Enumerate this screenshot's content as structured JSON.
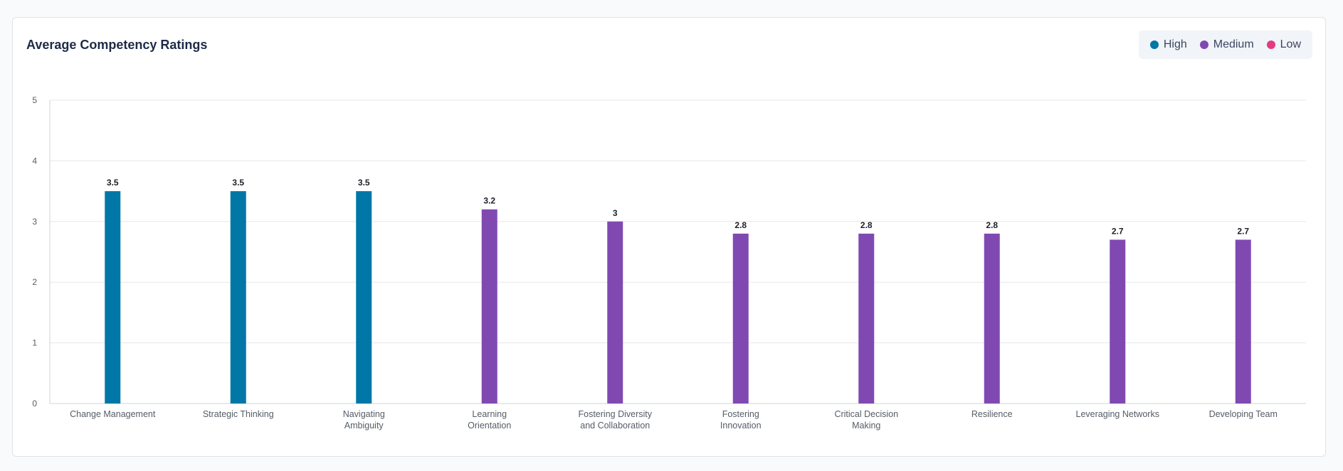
{
  "legend": {
    "items": [
      {
        "label": "High",
        "color": "#0077a6"
      },
      {
        "label": "Medium",
        "color": "#8049b2"
      },
      {
        "label": "Low",
        "color": "#e33b7f"
      }
    ]
  },
  "chart_data": {
    "type": "bar",
    "title": "Average Competency Ratings",
    "xlabel": "",
    "ylabel": "",
    "ylim": [
      0,
      5
    ],
    "yticks": [
      0,
      1,
      2,
      3,
      4,
      5
    ],
    "grid": true,
    "legend_position": "top-right",
    "categories": [
      "Change Management",
      "Strategic Thinking",
      "Navigating Ambiguity",
      "Learning Orientation",
      "Fostering Diversity and Collaboration",
      "Fostering Innovation",
      "Critical Decision Making",
      "Resilience",
      "Leveraging Networks",
      "Developing Team"
    ],
    "values": [
      3.5,
      3.5,
      3.5,
      3.2,
      3,
      2.8,
      2.8,
      2.8,
      2.7,
      2.7
    ],
    "value_labels": [
      "3.5",
      "3.5",
      "3.5",
      "3.2",
      "3",
      "2.8",
      "2.8",
      "2.8",
      "2.7",
      "2.7"
    ],
    "levels": [
      "High",
      "High",
      "High",
      "Medium",
      "Medium",
      "Medium",
      "Medium",
      "Medium",
      "Medium",
      "Medium"
    ]
  }
}
